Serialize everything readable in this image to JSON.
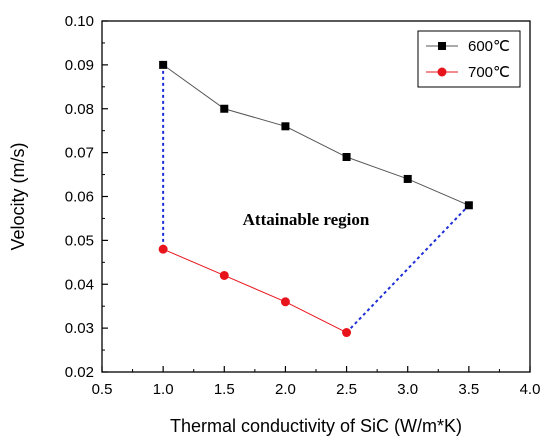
{
  "chart_data": {
    "type": "line",
    "xlabel": "Thermal conductivity of SiC (W/m*K)",
    "ylabel": "Velocity (m/s)",
    "xlim": [
      0.5,
      4.0
    ],
    "ylim": [
      0.02,
      0.1
    ],
    "xticks": [
      "0.5",
      "1.0",
      "1.5",
      "2.0",
      "2.5",
      "3.0",
      "3.5",
      "4.0"
    ],
    "yticks": [
      "0.02",
      "0.03",
      "0.04",
      "0.05",
      "0.06",
      "0.07",
      "0.08",
      "0.09",
      "0.10"
    ],
    "grid": false,
    "legend_position": "top-right",
    "series": [
      {
        "name": "600℃",
        "color": "#000000",
        "line_color": "#555555",
        "marker": "square",
        "x": [
          1.0,
          1.5,
          2.0,
          2.5,
          3.0,
          3.5
        ],
        "values": [
          0.09,
          0.08,
          0.076,
          0.069,
          0.064,
          0.058
        ]
      },
      {
        "name": "700℃",
        "color": "#e8141c",
        "line_color": "#e8141c",
        "marker": "circle",
        "x": [
          1.0,
          1.5,
          2.0,
          2.5
        ],
        "values": [
          0.048,
          0.042,
          0.036,
          0.029
        ]
      }
    ],
    "boundary_lines": [
      {
        "color": "#1f2fd6",
        "style": "dotted",
        "x": [
          1.0,
          1.0
        ],
        "values": [
          0.09,
          0.048
        ]
      },
      {
        "color": "#1f2fd6",
        "style": "dotted",
        "x": [
          2.5,
          3.5
        ],
        "values": [
          0.029,
          0.058
        ]
      }
    ],
    "annotations": [
      {
        "text": "Attainable region",
        "x": 1.65,
        "y": 0.0535
      }
    ]
  }
}
